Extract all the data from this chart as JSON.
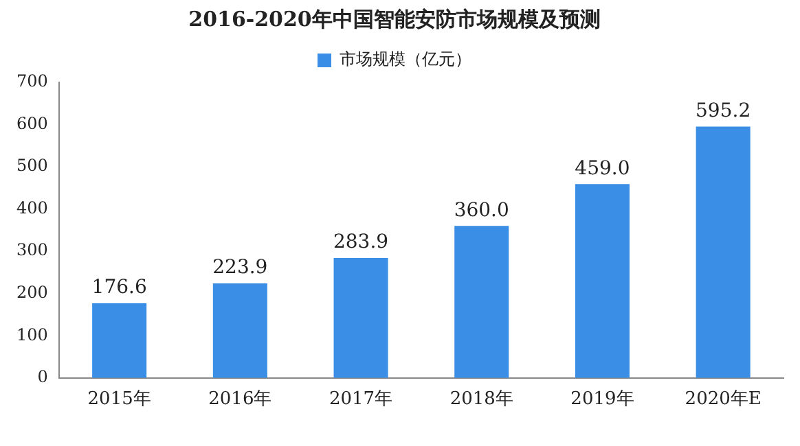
{
  "chart_data": {
    "type": "bar",
    "title": "2016-2020年中国智能安防市场规模及预测",
    "categories": [
      "2015年",
      "2016年",
      "2017年",
      "2018年",
      "2019年",
      "2020年E"
    ],
    "series": [
      {
        "name": "市场规模（亿元）",
        "color": "#3a8ee6",
        "values": [
          176.6,
          223.9,
          283.9,
          360.0,
          459.0,
          595.2
        ],
        "value_labels": [
          "176.6",
          "223.9",
          "283.9",
          "360.0",
          "459.0",
          "595.2"
        ]
      }
    ],
    "ylim": [
      0,
      700
    ],
    "yticks": [
      0,
      100,
      200,
      300,
      400,
      500,
      600,
      700
    ],
    "grid": false,
    "legend": "top"
  }
}
